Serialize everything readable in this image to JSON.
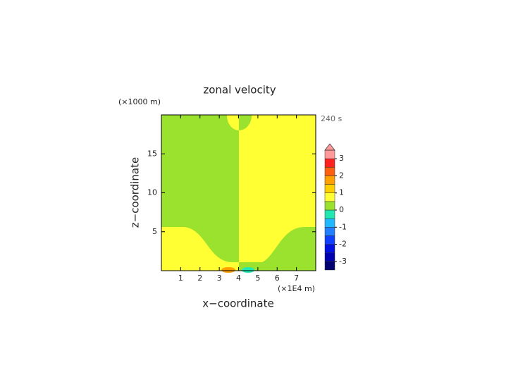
{
  "chart_data": {
    "type": "contour",
    "title": "zonal velocity",
    "xlabel": "x−coordinate",
    "ylabel": "z−coordinate",
    "x_unit": "(×1E4 m)",
    "y_unit": "(×1000 m)",
    "time_label": "240 s",
    "xlim": [
      0,
      8
    ],
    "xticks": [
      1,
      2,
      3,
      4,
      5,
      6,
      7
    ],
    "ylim": [
      0,
      20
    ],
    "yticks": [
      5,
      10,
      15
    ],
    "colorbar": {
      "levels": [
        -3.5,
        -3,
        -2.5,
        -2,
        -1.5,
        -1,
        -0.5,
        0,
        0.5,
        1,
        1.5,
        2,
        2.5,
        3,
        3.5
      ],
      "colors": [
        "#000070",
        "#0000b0",
        "#0010e0",
        "#1040ff",
        "#2080ff",
        "#20b8ff",
        "#20e8b0",
        "#9be22e",
        "#ffff33",
        "#ffd000",
        "#ffa000",
        "#ff6010",
        "#ff2020",
        "#ff9a9a"
      ],
      "ticks": [
        -3,
        -2,
        -1,
        0,
        1,
        2,
        3
      ],
      "extend": "max"
    }
  }
}
